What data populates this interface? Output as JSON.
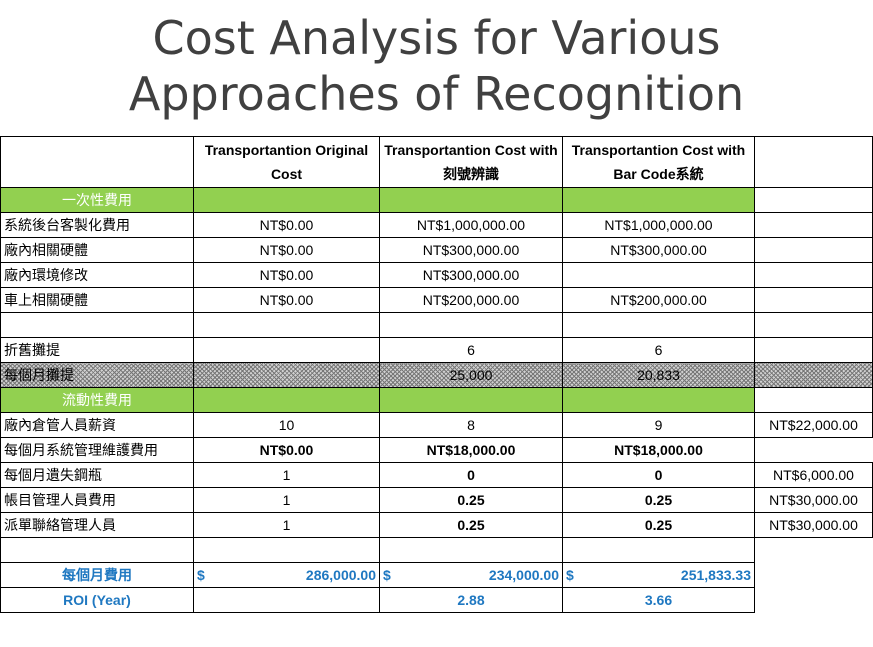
{
  "title": {
    "line1": "Cost Analysis for Various",
    "line2": "Approaches of Recognition"
  },
  "headers": [
    "Transportantion Original Cost",
    "Transportantion Cost with 刻號辨識",
    "Transportantion Cost with Bar Code系統"
  ],
  "sections": {
    "one_time": "一次性費用",
    "recurring": "流動性費用"
  },
  "one_time_rows": [
    {
      "label": "系統後台客製化費用",
      "v": [
        "NT$0.00",
        "NT$1,000,000.00",
        "NT$1,000,000.00"
      ]
    },
    {
      "label": "廠內相關硬體",
      "v": [
        "NT$0.00",
        "NT$300,000.00",
        "NT$300,000.00"
      ]
    },
    {
      "label": "廠內環境修改",
      "v": [
        "NT$0.00",
        "NT$300,000.00",
        ""
      ]
    },
    {
      "label": "車上相關硬體",
      "v": [
        "NT$0.00",
        "NT$200,000.00",
        "NT$200,000.00"
      ]
    }
  ],
  "depreciation": {
    "label": "折舊攤提",
    "v": [
      "",
      "6",
      "6"
    ]
  },
  "monthly_depr": {
    "label": "每個月攤提",
    "v": [
      "",
      "25,000",
      "20,833"
    ]
  },
  "recurring_rows": [
    {
      "label": "廠內倉管人員薪資",
      "v": [
        "10",
        "8",
        "9"
      ],
      "unit": "NT$22,000.00",
      "bold": false
    },
    {
      "label": "每個月系統管理維護費用",
      "v": [
        "NT$0.00",
        "NT$18,000.00",
        "NT$18,000.00"
      ],
      "unit": "",
      "bold": true
    },
    {
      "label": "每個月遺失鋼瓶",
      "v": [
        "1",
        "0",
        "0"
      ],
      "unit": "NT$6,000.00",
      "bold": false
    },
    {
      "label": "帳目管理人員費用",
      "v": [
        "1",
        "0.25",
        "0.25"
      ],
      "unit": "NT$30,000.00",
      "bold": false
    },
    {
      "label": "派單聯絡管理人員",
      "v": [
        "1",
        "0.25",
        "0.25"
      ],
      "unit": "NT$30,000.00",
      "bold": false
    }
  ],
  "monthly_total": {
    "label": "每個月費用",
    "currency": "$",
    "v": [
      "286,000.00",
      "234,000.00",
      "251,833.33"
    ]
  },
  "roi": {
    "label": "ROI (Year)",
    "v": [
      "",
      "2.88",
      "3.66"
    ]
  }
}
